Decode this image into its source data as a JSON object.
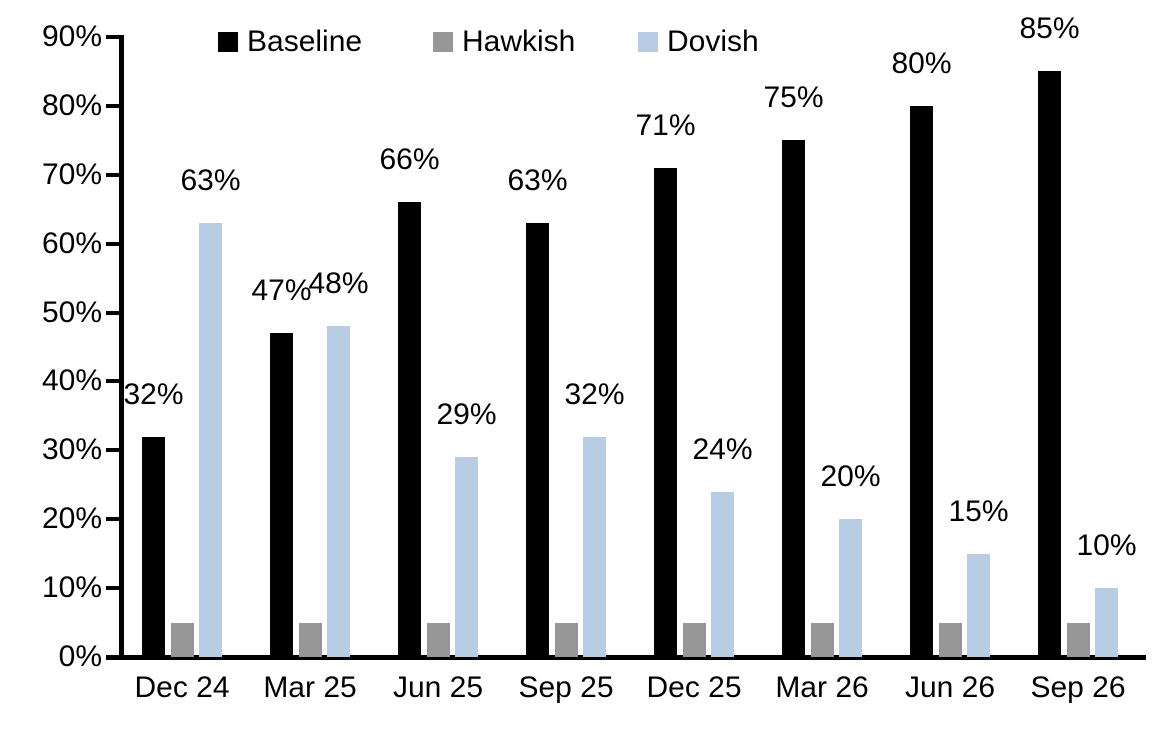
{
  "chart_data": {
    "type": "bar",
    "title": "",
    "xlabel": "",
    "ylabel": "",
    "categories": [
      "Dec 24",
      "Mar 25",
      "Jun 25",
      "Sep 25",
      "Dec 25",
      "Mar 26",
      "Jun 26",
      "Sep 26"
    ],
    "series": [
      {
        "name": "Baseline",
        "color": "#000000",
        "values": [
          32,
          47,
          66,
          63,
          71,
          75,
          80,
          85
        ],
        "labels": [
          "32%",
          "47%",
          "66%",
          "63%",
          "71%",
          "75%",
          "80%",
          "85%"
        ]
      },
      {
        "name": "Hawkish",
        "color": "#979797",
        "values": [
          5,
          5,
          5,
          5,
          5,
          5,
          5,
          5
        ],
        "labels": [
          "",
          "",
          "",
          "",
          "",
          "",
          "",
          ""
        ]
      },
      {
        "name": "Dovish",
        "color": "#b8cde4",
        "values": [
          63,
          48,
          29,
          32,
          24,
          20,
          15,
          10
        ],
        "labels": [
          "63%",
          "48%",
          "29%",
          "32%",
          "24%",
          "20%",
          "15%",
          "10%"
        ]
      }
    ],
    "ylim": [
      0,
      90
    ],
    "yticks": [
      "0%",
      "10%",
      "20%",
      "30%",
      "40%",
      "50%",
      "60%",
      "70%",
      "80%",
      "90%"
    ],
    "ytick_values": [
      0,
      10,
      20,
      30,
      40,
      50,
      60,
      70,
      80,
      90
    ],
    "grid": false,
    "legend_position": "top",
    "axis_color": "#000000"
  }
}
